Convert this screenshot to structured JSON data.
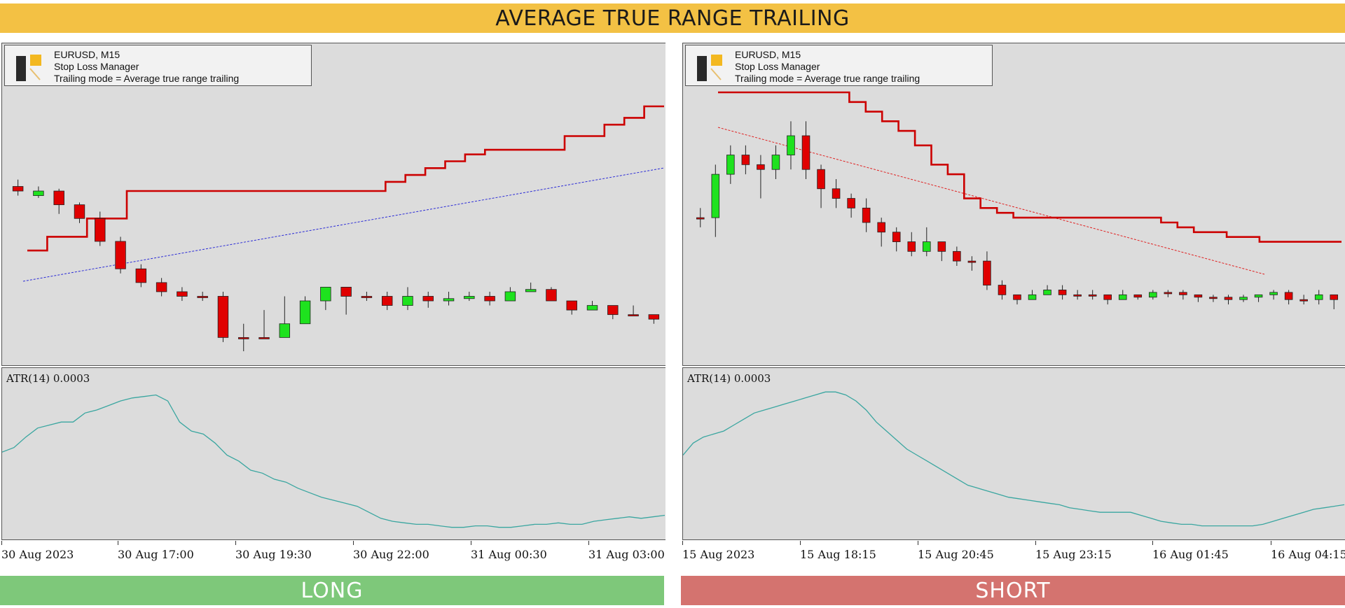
{
  "header": {
    "title": "AVERAGE TRUE RANGE TRAILING"
  },
  "panels": [
    {
      "info": {
        "symbol": "EURUSD, M15",
        "tool": "Stop Loss Manager",
        "mode": "Trailing mode = Average true range trailing"
      },
      "atr_label": "ATR(14) 0.0003",
      "footer": "LONG",
      "footer_color": "#7ec87a"
    },
    {
      "info": {
        "symbol": "EURUSD, M15",
        "tool": "Stop Loss Manager",
        "mode": "Trailing mode = Average true range trailing"
      },
      "atr_label": "ATR(14) 0.0003",
      "footer": "SHORT",
      "footer_color": "#d4736f"
    }
  ],
  "colors": {
    "banner": "#f3c144",
    "bull_candle": "#1ee21e",
    "bear_candle": "#e00000",
    "stop_line": "#cc0000",
    "atr_line": "#3aa6a0",
    "long_dotted": "#2b2bd6",
    "short_dotted": "#e02020",
    "plot_bg": "#dcdcdc"
  },
  "chart_data": [
    {
      "type": "candlestick",
      "title": "",
      "time_ticks": [
        "30 Aug 2023",
        "30 Aug 17:00",
        "30 Aug 19:30",
        "30 Aug 22:00",
        "31 Aug 00:30",
        "31 Aug 03:00"
      ],
      "price_range": [
        0,
        100
      ],
      "candles": [
        [
          28,
          26,
          31,
          24
        ],
        [
          24,
          26,
          28,
          23
        ],
        [
          26,
          20,
          27,
          16
        ],
        [
          20,
          14,
          21,
          12
        ],
        [
          14,
          4,
          17,
          2
        ],
        [
          4,
          -8,
          6,
          -10
        ],
        [
          -8,
          -14,
          -6,
          -16
        ],
        [
          -14,
          -18,
          -12,
          -20
        ],
        [
          -18,
          -20,
          -16,
          -22
        ],
        [
          -20,
          -20,
          -18,
          -22
        ],
        [
          -20,
          -38,
          -18,
          -40
        ],
        [
          -38,
          -38,
          -32,
          -44
        ],
        [
          -38,
          -38,
          -26,
          -38
        ],
        [
          -38,
          -32,
          -20,
          -36
        ],
        [
          -32,
          -22,
          -20,
          -30
        ],
        [
          -22,
          -16,
          -16,
          -26
        ],
        [
          -16,
          -20,
          -16,
          -28
        ],
        [
          -20,
          -20,
          -18,
          -22
        ],
        [
          -20,
          -24,
          -18,
          -26
        ],
        [
          -24,
          -20,
          -16,
          -26
        ],
        [
          -20,
          -22,
          -18,
          -25
        ],
        [
          -22,
          -21,
          -18,
          -24
        ],
        [
          -21,
          -20,
          -18,
          -22
        ],
        [
          -20,
          -22,
          -18,
          -24
        ],
        [
          -22,
          -18,
          -16,
          -22
        ],
        [
          -18,
          -17,
          -14,
          -18
        ],
        [
          -17,
          -22,
          -16,
          -22
        ],
        [
          -22,
          -26,
          -22,
          -28
        ],
        [
          -26,
          -24,
          -22,
          -26
        ],
        [
          -24,
          -28,
          -24,
          -30
        ],
        [
          -28,
          -28,
          -24,
          -28
        ],
        [
          -28,
          -30,
          -28,
          -32
        ]
      ],
      "stop_steps": [
        0,
        6,
        6,
        14,
        14,
        26,
        26,
        26,
        26,
        26,
        26,
        26,
        26,
        26,
        26,
        26,
        26,
        26,
        30,
        33,
        36,
        39,
        42,
        44,
        44,
        44,
        44,
        50,
        50,
        55,
        58,
        63
      ],
      "atr": [
        52,
        55,
        62,
        68,
        70,
        72,
        72,
        78,
        80,
        83,
        86,
        88,
        89,
        90,
        86,
        72,
        66,
        64,
        58,
        50,
        46,
        40,
        38,
        34,
        32,
        28,
        25,
        22,
        20,
        18,
        16,
        12,
        8,
        6,
        5,
        4,
        4,
        3,
        2,
        2,
        3,
        3,
        2,
        2,
        3,
        4,
        4,
        5,
        4,
        4,
        6,
        7,
        8,
        9,
        8,
        9,
        10
      ]
    },
    {
      "type": "candlestick",
      "title": "",
      "time_ticks": [
        "15 Aug 2023",
        "15 Aug 18:15",
        "15 Aug 20:45",
        "15 Aug 23:15",
        "16 Aug 01:45",
        "16 Aug 04:15"
      ],
      "price_range": [
        0,
        100
      ],
      "candles": [
        [
          40,
          40,
          44,
          36
        ],
        [
          40,
          58,
          62,
          32
        ],
        [
          58,
          66,
          70,
          54
        ],
        [
          66,
          62,
          70,
          58
        ],
        [
          62,
          60,
          66,
          48
        ],
        [
          60,
          66,
          70,
          56
        ],
        [
          66,
          74,
          80,
          60
        ],
        [
          74,
          60,
          80,
          56
        ],
        [
          60,
          52,
          62,
          44
        ],
        [
          52,
          48,
          56,
          44
        ],
        [
          48,
          44,
          50,
          40
        ],
        [
          44,
          38,
          48,
          34
        ],
        [
          38,
          34,
          40,
          28
        ],
        [
          34,
          30,
          36,
          26
        ],
        [
          30,
          26,
          34,
          24
        ],
        [
          26,
          30,
          36,
          24
        ],
        [
          30,
          26,
          30,
          22
        ],
        [
          26,
          22,
          28,
          20
        ],
        [
          22,
          22,
          24,
          18
        ],
        [
          22,
          12,
          26,
          10
        ],
        [
          12,
          8,
          14,
          6
        ],
        [
          8,
          6,
          8,
          4
        ],
        [
          6,
          8,
          10,
          6
        ],
        [
          8,
          10,
          12,
          8
        ],
        [
          10,
          8,
          12,
          6
        ],
        [
          8,
          8,
          10,
          6
        ],
        [
          8,
          8,
          10,
          6
        ],
        [
          8,
          6,
          8,
          4
        ],
        [
          6,
          8,
          10,
          6
        ],
        [
          8,
          7,
          8,
          6
        ],
        [
          7,
          9,
          10,
          6
        ],
        [
          9,
          9,
          10,
          7
        ],
        [
          9,
          8,
          10,
          6
        ],
        [
          8,
          7,
          8,
          5
        ],
        [
          7,
          7,
          8,
          5
        ],
        [
          7,
          6,
          8,
          4
        ],
        [
          6,
          7,
          8,
          5
        ],
        [
          7,
          8,
          8,
          5
        ],
        [
          8,
          9,
          10,
          6
        ],
        [
          9,
          6,
          10,
          4
        ],
        [
          6,
          6,
          8,
          4
        ],
        [
          6,
          8,
          10,
          4
        ],
        [
          8,
          6,
          8,
          2
        ]
      ],
      "stop_steps": [
        92,
        92,
        92,
        92,
        92,
        92,
        92,
        92,
        88,
        84,
        80,
        76,
        70,
        62,
        58,
        48,
        44,
        42,
        40,
        40,
        40,
        40,
        40,
        40,
        40,
        40,
        40,
        38,
        36,
        34,
        34,
        32,
        32,
        30,
        30,
        30,
        30,
        30
      ],
      "atr": [
        50,
        58,
        62,
        64,
        66,
        70,
        74,
        78,
        80,
        82,
        84,
        86,
        88,
        90,
        92,
        92,
        90,
        86,
        80,
        72,
        66,
        60,
        54,
        50,
        46,
        42,
        38,
        34,
        30,
        28,
        26,
        24,
        22,
        21,
        20,
        19,
        18,
        17,
        15,
        14,
        13,
        12,
        12,
        12,
        12,
        10,
        8,
        6,
        5,
        4,
        4,
        3,
        3,
        3,
        3,
        3,
        3,
        4,
        6,
        8,
        10,
        12,
        14,
        15,
        16,
        17
      ]
    }
  ]
}
